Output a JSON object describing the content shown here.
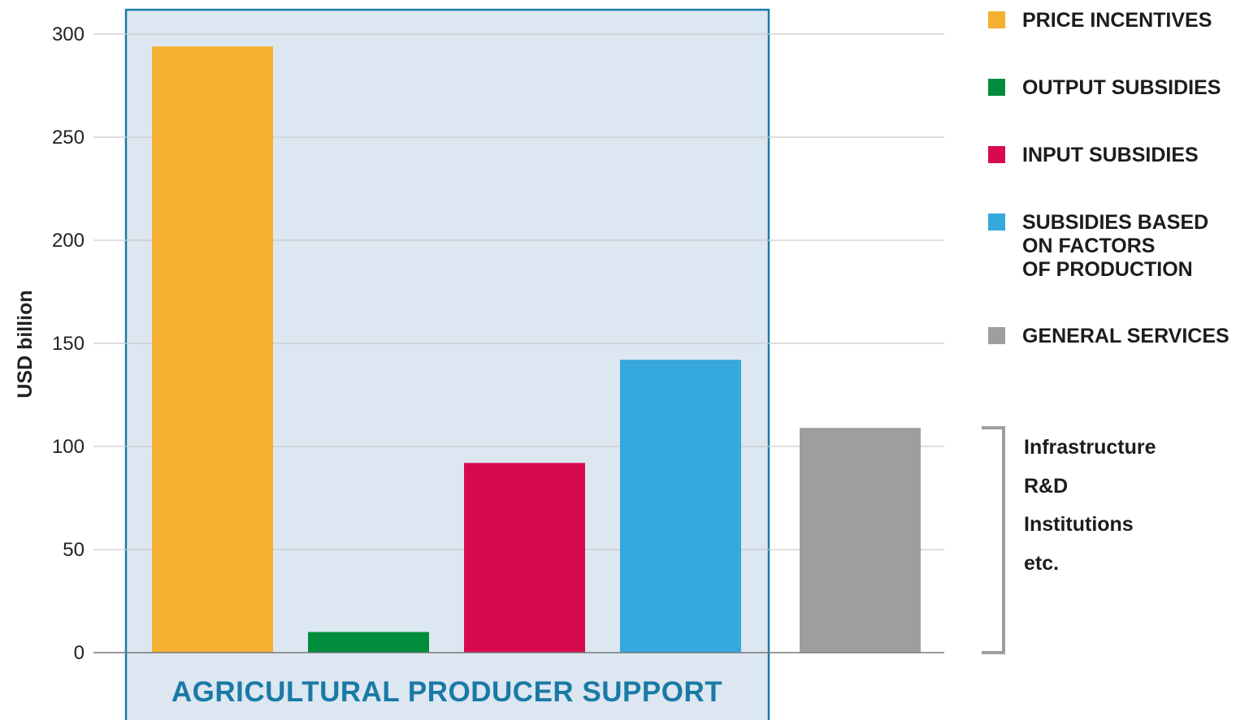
{
  "chart_data": {
    "type": "bar",
    "ylabel": "USD billion",
    "ylim": [
      0,
      300
    ],
    "yticks": [
      0,
      50,
      100,
      150,
      200,
      250,
      300
    ],
    "grid": true,
    "bars": [
      {
        "name": "PRICE INCENTIVES",
        "value": 294,
        "color": "#f5b031"
      },
      {
        "name": "OUTPUT SUBSIDIES",
        "value": 10,
        "color": "#008c3a"
      },
      {
        "name": "INPUT SUBSIDIES",
        "value": 92,
        "color": "#d80a4f"
      },
      {
        "name": "SUBSIDIES BASED ON FACTORS OF PRODUCTION",
        "value": 142,
        "color": "#35a8de"
      },
      {
        "name": "GENERAL SERVICES",
        "value": 109,
        "color": "#9e9e9e"
      }
    ],
    "group": {
      "label": "AGRICULTURAL PRODUCER SUPPORT",
      "fill": "#dce7f1",
      "border": "#1a7aa6"
    },
    "legend_position": "right"
  },
  "legend": {
    "items": [
      {
        "label": "PRICE INCENTIVES",
        "color": "#f5b031"
      },
      {
        "label": "OUTPUT SUBSIDIES",
        "color": "#008c3a"
      },
      {
        "label": "INPUT SUBSIDIES",
        "color": "#d80a4f"
      },
      {
        "label": "SUBSIDIES BASED\nON FACTORS\nOF PRODUCTION",
        "color": "#35a8de"
      },
      {
        "label": "GENERAL SERVICES",
        "color": "#9e9e9e"
      }
    ]
  },
  "general_services_notes": [
    "Infrastructure",
    "R&D",
    "Institutions",
    "etc."
  ]
}
